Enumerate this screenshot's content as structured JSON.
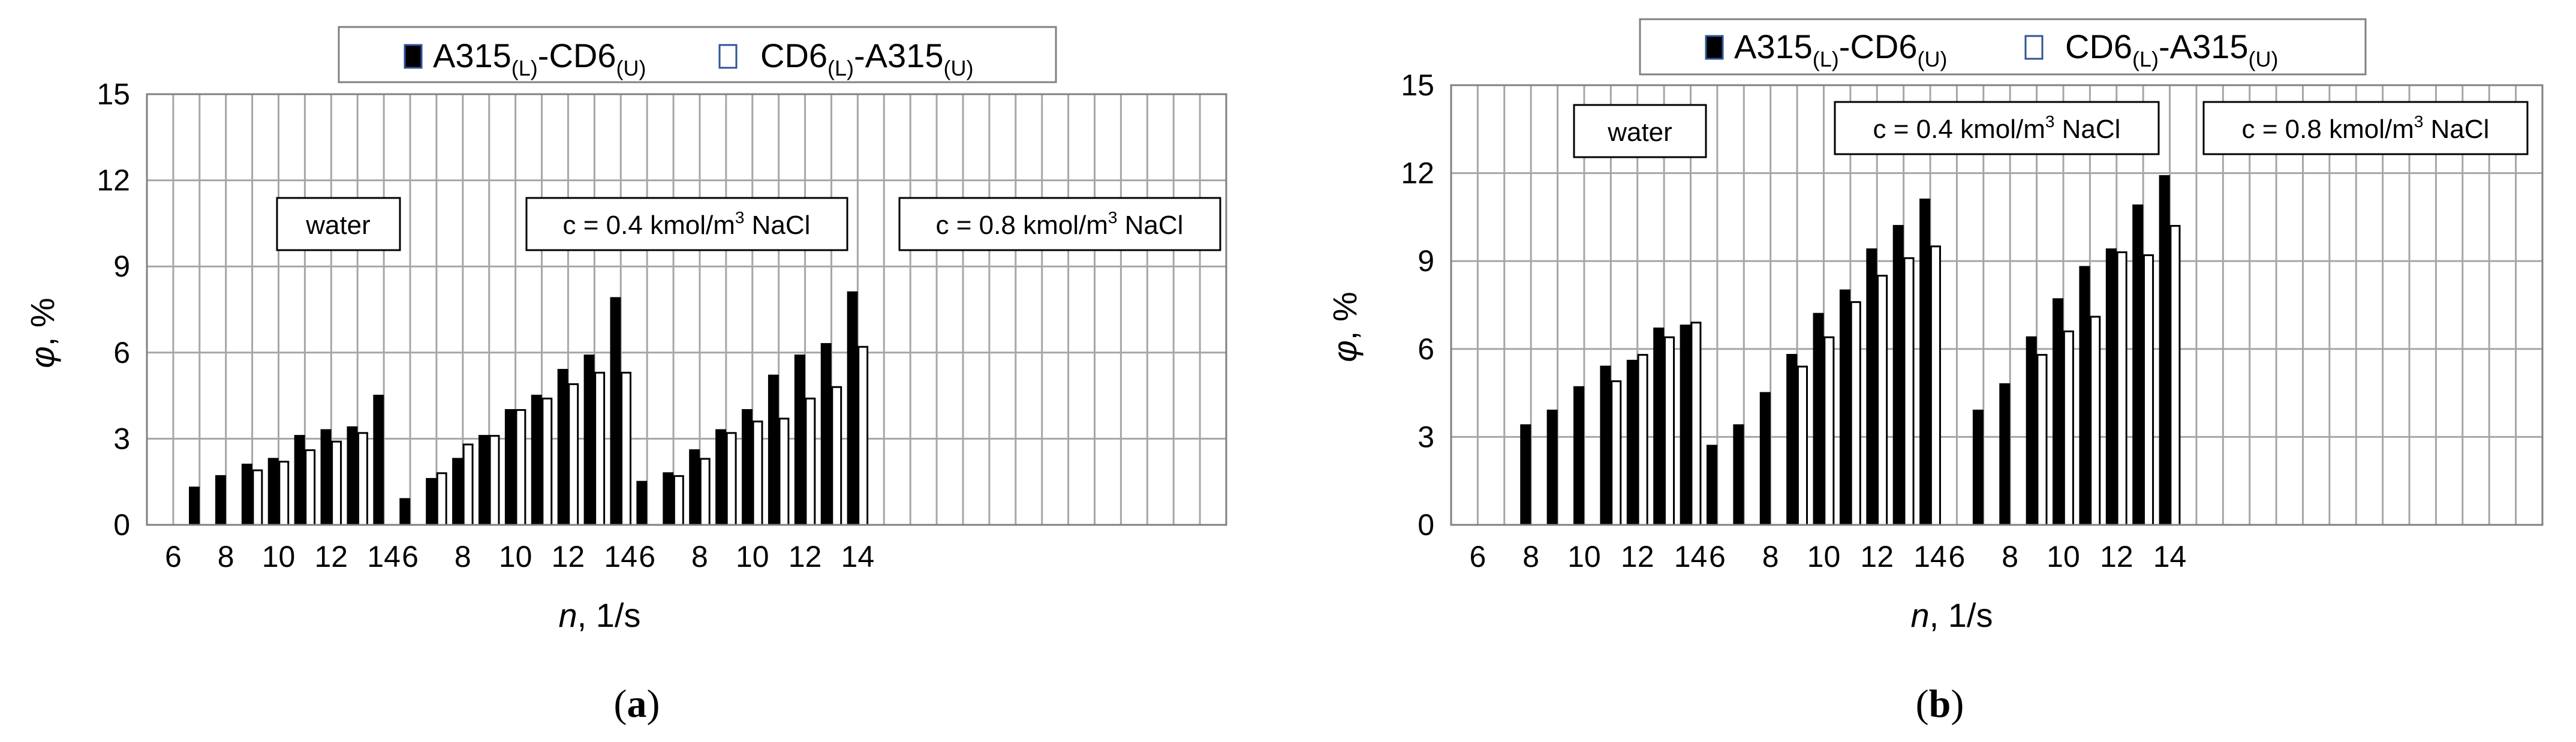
{
  "chart_data": [
    {
      "type": "bar",
      "caption": {
        "pre": "(",
        "letter": "a",
        "post": ")"
      },
      "ylabel": {
        "symbol": "φ",
        "unit": ", %"
      },
      "xlabel": {
        "symbol": "n",
        "unit": ", 1/s"
      },
      "ylim": [
        0,
        15
      ],
      "yticks": [
        "0",
        "3",
        "6",
        "9",
        "12",
        "15"
      ],
      "x_range": [
        5,
        46
      ],
      "xtick_labels": [
        {
          "x": 6,
          "label": "6"
        },
        {
          "x": 8,
          "label": "8"
        },
        {
          "x": 10,
          "label": "10"
        },
        {
          "x": 12,
          "label": "12"
        },
        {
          "x": 14,
          "label": "14"
        },
        {
          "x": 15,
          "label": "6"
        },
        {
          "x": 17,
          "label": "8"
        },
        {
          "x": 19,
          "label": "10"
        },
        {
          "x": 21,
          "label": "12"
        },
        {
          "x": 23,
          "label": "14"
        },
        {
          "x": 24,
          "label": "6"
        },
        {
          "x": 26,
          "label": "8"
        },
        {
          "x": 28,
          "label": "10"
        },
        {
          "x": 30,
          "label": "12"
        },
        {
          "x": 32,
          "label": "14"
        }
      ],
      "legend": {
        "position": "top-center",
        "entries": [
          {
            "base": "A315",
            "sub1": "(L)",
            "mid": "-CD6",
            "sub2": "(U)"
          },
          {
            "base": "CD6",
            "sub1": "(L)",
            "mid": "-A315",
            "sub2": "(U)"
          }
        ]
      },
      "annotations": [
        {
          "parts": [
            "water"
          ]
        },
        {
          "parts": [
            "c = 0.4 kmol/m",
            "3",
            " NaCl"
          ]
        },
        {
          "parts": [
            "c = 0.8 kmol/m",
            "3",
            " NaCl"
          ]
        }
      ],
      "series": [
        {
          "name": "A315(L)-CD6(U)",
          "color": "#000000",
          "x": [
            6.8,
            7.8,
            8.8,
            9.8,
            10.8,
            11.8,
            12.8,
            13.8,
            14.8,
            15.8,
            16.8,
            17.8,
            18.8,
            19.8,
            20.8,
            21.8,
            22.8,
            23.8,
            24.8,
            25.8,
            26.8,
            27.8,
            28.8,
            29.8,
            30.8,
            31.8
          ],
          "values": [
            1.3,
            1.7,
            2.1,
            2.3,
            3.1,
            3.3,
            3.4,
            4.5,
            0.9,
            1.6,
            2.3,
            3.1,
            4.0,
            4.5,
            5.4,
            5.9,
            7.9,
            1.5,
            1.8,
            2.6,
            3.3,
            4.0,
            5.2,
            5.9,
            6.3,
            8.1
          ]
        },
        {
          "name": "CD6(L)-A315(U)",
          "color": "#ffffff",
          "x": [
            9.2,
            10.2,
            11.2,
            12.2,
            13.2,
            16.2,
            17.2,
            18.2,
            19.2,
            20.2,
            21.2,
            22.2,
            23.2,
            25.2,
            26.2,
            27.2,
            28.2,
            29.2,
            30.2,
            31.2,
            32.2
          ],
          "values": [
            1.9,
            2.2,
            2.6,
            2.9,
            3.2,
            1.8,
            2.8,
            3.1,
            4.0,
            4.4,
            4.9,
            5.3,
            5.3,
            1.7,
            2.3,
            3.2,
            3.6,
            3.7,
            4.4,
            4.8,
            6.2
          ]
        }
      ]
    },
    {
      "type": "bar",
      "caption": {
        "pre": "(",
        "letter": "b",
        "post": ")"
      },
      "ylabel": {
        "symbol": "φ",
        "unit": ", %"
      },
      "xlabel": {
        "symbol": "n",
        "unit": ", 1/s"
      },
      "ylim": [
        0,
        15
      ],
      "yticks": [
        "0",
        "3",
        "6",
        "9",
        "12",
        "15"
      ],
      "x_range": [
        5,
        46
      ],
      "xtick_labels": [
        {
          "x": 6,
          "label": "6"
        },
        {
          "x": 8,
          "label": "8"
        },
        {
          "x": 10,
          "label": "10"
        },
        {
          "x": 12,
          "label": "12"
        },
        {
          "x": 14,
          "label": "14"
        },
        {
          "x": 15,
          "label": "6"
        },
        {
          "x": 17,
          "label": "8"
        },
        {
          "x": 19,
          "label": "10"
        },
        {
          "x": 21,
          "label": "12"
        },
        {
          "x": 23,
          "label": "14"
        },
        {
          "x": 24,
          "label": "6"
        },
        {
          "x": 26,
          "label": "8"
        },
        {
          "x": 28,
          "label": "10"
        },
        {
          "x": 30,
          "label": "12"
        },
        {
          "x": 32,
          "label": "14"
        }
      ],
      "legend": {
        "position": "top-center",
        "entries": [
          {
            "base": "A315",
            "sub1": "(L)",
            "mid": "-CD6",
            "sub2": "(U)"
          },
          {
            "base": "CD6",
            "sub1": "(L)",
            "mid": "-A315",
            "sub2": "(U)"
          }
        ]
      },
      "annotations": [
        {
          "parts": [
            "water"
          ]
        },
        {
          "parts": [
            "c = 0.4 kmol/m",
            "3",
            " NaCl"
          ]
        },
        {
          "parts": [
            "c = 0.8 kmol/m",
            "3",
            " NaCl"
          ]
        }
      ],
      "series": [
        {
          "name": "A315(L)-CD6(U)",
          "color": "#000000",
          "x": [
            7.8,
            8.8,
            9.8,
            10.8,
            11.8,
            12.8,
            13.8,
            14.8,
            15.8,
            16.8,
            17.8,
            18.8,
            19.8,
            20.8,
            21.8,
            22.8,
            24.8,
            25.8,
            26.8,
            27.8,
            28.8,
            29.8,
            30.8,
            31.8
          ],
          "values": [
            3.4,
            3.9,
            4.7,
            5.4,
            5.6,
            6.7,
            6.8,
            2.7,
            3.4,
            4.5,
            5.8,
            7.2,
            8.0,
            9.4,
            10.2,
            11.1,
            3.9,
            4.8,
            6.4,
            7.7,
            8.8,
            9.4,
            10.9,
            11.9
          ]
        },
        {
          "name": "CD6(L)-A315(U)",
          "color": "#ffffff",
          "x": [
            11.2,
            12.2,
            13.2,
            14.2,
            18.2,
            19.2,
            20.2,
            21.2,
            22.2,
            23.2,
            27.2,
            28.2,
            29.2,
            30.2,
            31.2,
            32.2
          ],
          "values": [
            4.9,
            5.8,
            6.4,
            6.9,
            5.4,
            6.4,
            7.6,
            8.5,
            9.1,
            9.5,
            5.8,
            6.6,
            7.1,
            9.3,
            9.2,
            10.2
          ]
        }
      ]
    }
  ]
}
